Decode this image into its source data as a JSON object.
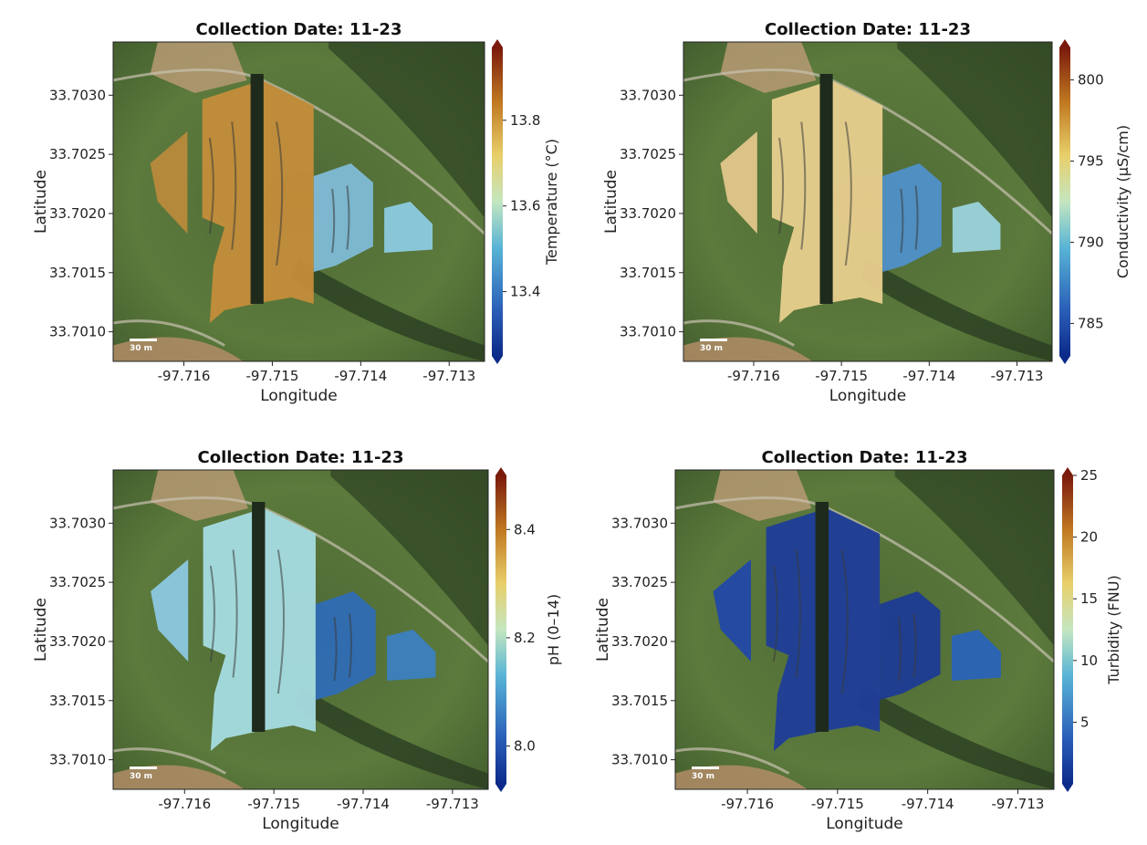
{
  "chart_data": [
    {
      "type": "heatmap",
      "title": "Collection Date: 11-23",
      "xlabel": "Longitude",
      "ylabel": "Latitude",
      "xticks": [
        -97.716,
        -97.715,
        -97.714,
        -97.713
      ],
      "yticks": [
        33.703,
        33.7025,
        33.702,
        33.7015,
        33.701
      ],
      "xlim": [
        -97.7168,
        -97.7126
      ],
      "ylim": [
        33.70075,
        33.70345
      ],
      "colorbar": {
        "label": "Temperature (°C)",
        "range": [
          13.25,
          13.97
        ],
        "ticks": [
          13.4,
          13.6,
          13.8
        ]
      },
      "scale_bar": "30 m",
      "colormap": "RdYlBu_r"
    },
    {
      "type": "heatmap",
      "title": "Collection Date: 11-23",
      "xlabel": "Longitude",
      "ylabel": "Latitude",
      "xticks": [
        -97.716,
        -97.715,
        -97.714,
        -97.713
      ],
      "yticks": [
        33.703,
        33.7025,
        33.702,
        33.7015,
        33.701
      ],
      "xlim": [
        -97.7168,
        -97.7126
      ],
      "ylim": [
        33.70075,
        33.70345
      ],
      "colorbar": {
        "label": "Conductivity (µS/cm)",
        "range": [
          783,
          802
        ],
        "ticks": [
          785,
          790,
          795,
          800
        ]
      },
      "scale_bar": "30 m",
      "colormap": "RdYlBu_r"
    },
    {
      "type": "heatmap",
      "title": "Collection Date: 11-23",
      "xlabel": "Longitude",
      "ylabel": "Latitude",
      "xticks": [
        -97.716,
        -97.715,
        -97.714,
        -97.713
      ],
      "yticks": [
        33.703,
        33.7025,
        33.702,
        33.7015,
        33.701
      ],
      "xlim": [
        -97.7168,
        -97.7126
      ],
      "ylim": [
        33.70075,
        33.70345
      ],
      "colorbar": {
        "label": "pH (0–14)",
        "range": [
          7.93,
          8.5
        ],
        "ticks": [
          8.0,
          8.2,
          8.4
        ]
      },
      "scale_bar": "30 m",
      "colormap": "RdYlBu_r"
    },
    {
      "type": "heatmap",
      "title": "Collection Date: 11-23",
      "xlabel": "Longitude",
      "ylabel": "Latitude",
      "xticks": [
        -97.716,
        -97.715,
        -97.714,
        -97.713
      ],
      "yticks": [
        33.703,
        33.7025,
        33.702,
        33.7015,
        33.701
      ],
      "xlim": [
        -97.7168,
        -97.7126
      ],
      "ylim": [
        33.70075,
        33.70345
      ],
      "colorbar": {
        "label": "Turbidity (FNU)",
        "range": [
          0,
          25
        ],
        "ticks": [
          5,
          10,
          15,
          20,
          25
        ]
      },
      "scale_bar": "30 m",
      "colormap": "RdYlBu_r"
    }
  ]
}
